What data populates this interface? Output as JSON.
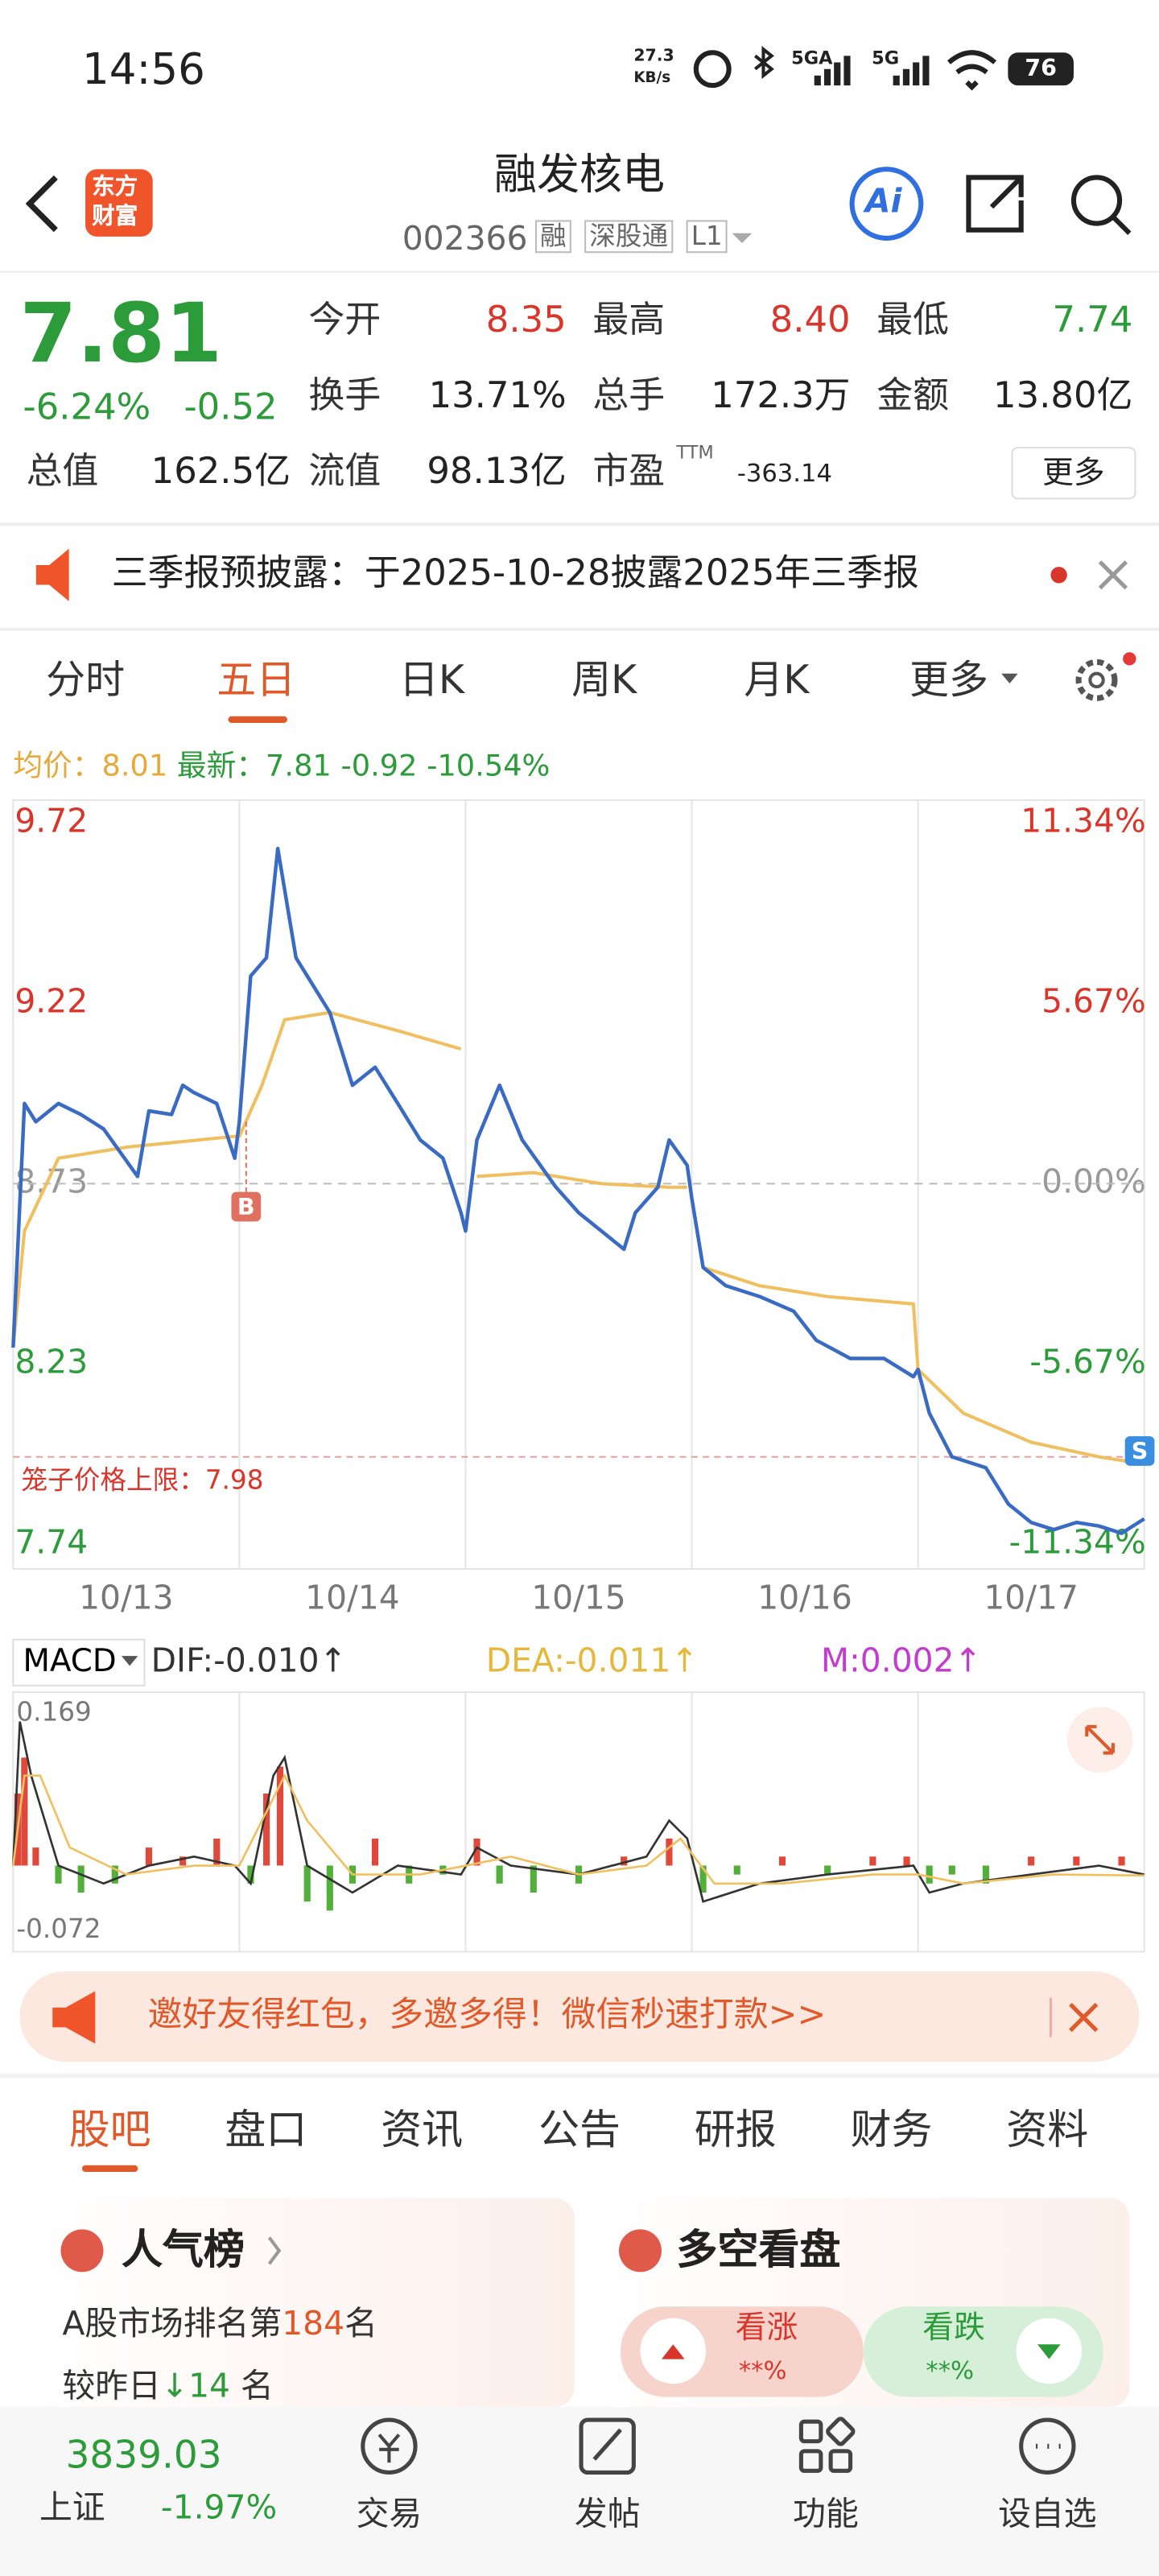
{
  "status_bar": {
    "time": "14:56",
    "net_speed": "27.3",
    "net_unit": "KB/s",
    "signal_1": "5GA",
    "signal_2": "5G",
    "battery": "76"
  },
  "header": {
    "title": "融发核电",
    "code": "002366",
    "tags": [
      "融",
      "深股通",
      "L1"
    ],
    "logo": [
      "东方",
      "财富"
    ],
    "ai": "Ai"
  },
  "quote": {
    "price": "7.81",
    "change_pct": "-6.24%",
    "change": "-0.52",
    "stats": [
      {
        "label": "今开",
        "value": "8.35"
      },
      {
        "label": "最高",
        "value": "8.40"
      },
      {
        "label": "最低",
        "value": "7.74"
      },
      {
        "label": "换手",
        "value": "13.71%"
      },
      {
        "label": "总手",
        "value": "172.3万"
      },
      {
        "label": "金额",
        "value": "13.80亿"
      },
      {
        "label": "总值",
        "value": "162.5亿"
      },
      {
        "label": "流值",
        "value": "98.13亿"
      },
      {
        "label": "市盈",
        "sup": "TTM",
        "value": "-363.14"
      }
    ],
    "more": "更多"
  },
  "notice": "三季报预披露：于2025-10-28披露2025年三季报",
  "tabs": [
    "分时",
    "五日",
    "日K",
    "周K",
    "月K",
    "更多"
  ],
  "info": {
    "avg_label": "均价：",
    "avg": "8.01",
    "last_label": "最新：",
    "last": "7.81",
    "change": "-0.92",
    "change_pct": "-10.54%"
  },
  "chart_data": [
    {
      "type": "line",
      "categories": [
        "10/13",
        "10/14",
        "10/15",
        "10/16",
        "10/17"
      ],
      "xlim": [
        0,
        5
      ],
      "ylim": [
        7.74,
        9.72
      ],
      "yticks": [
        9.72,
        {
          "value": 9.225,
          "label": "9.22"
        },
        8.73,
        {
          "value": 8.235,
          "label": "8.23"
        },
        7.74
      ],
      "y2lim": [
        -11.34,
        11.34
      ],
      "y2ticks": [
        {
          "value": 11.34,
          "label": "11.34%"
        },
        {
          "value": 5.67,
          "label": "5.67%"
        },
        {
          "value": 0,
          "label": "0.00%"
        },
        {
          "value": -5.67,
          "label": "-5.67%"
        },
        {
          "value": -11.34,
          "label": "-11.34%"
        }
      ],
      "series": [
        {
          "color": "#3a6bc4",
          "x": [
            0,
            0.05,
            0.1,
            0.2,
            0.3,
            0.4,
            0.55,
            0.6,
            0.7,
            0.75,
            0.8,
            0.9,
            0.98,
            1.0,
            1.05,
            1.12,
            1.17,
            1.25,
            1.4,
            1.5,
            1.6,
            1.7,
            1.8,
            1.9,
            1.98,
            2.0,
            2.05,
            2.15,
            2.25,
            2.4,
            2.5,
            2.6,
            2.7,
            2.75,
            2.85,
            2.9,
            2.98,
            3.0,
            3.05,
            3.15,
            3.3,
            3.45,
            3.55,
            3.7,
            3.85,
            3.98,
            4.0,
            4.05,
            4.15,
            4.3,
            4.4,
            4.5,
            4.6,
            4.7,
            4.8,
            4.9,
            5.0
          ],
          "values": [
            8.28,
            8.95,
            8.9,
            8.95,
            8.92,
            8.88,
            8.75,
            8.93,
            8.92,
            9.0,
            8.98,
            8.95,
            8.8,
            8.9,
            9.3,
            9.35,
            9.65,
            9.35,
            9.2,
            9.0,
            9.05,
            8.95,
            8.85,
            8.8,
            8.65,
            8.6,
            8.85,
            9.0,
            8.85,
            8.72,
            8.65,
            8.6,
            8.55,
            8.65,
            8.72,
            8.85,
            8.78,
            8.69,
            8.5,
            8.45,
            8.42,
            8.38,
            8.3,
            8.25,
            8.25,
            8.2,
            8.22,
            8.1,
            7.98,
            7.95,
            7.85,
            7.8,
            7.78,
            7.8,
            7.79,
            7.77,
            7.81
          ]
        },
        {
          "color": "#f0c060",
          "x": [
            0,
            0.05,
            0.2,
            0.5,
            0.98,
            1.0,
            1.1,
            1.2,
            1.4,
            1.7,
            1.98,
            2.0,
            2.05,
            2.3,
            2.6,
            2.9,
            2.98,
            3.0,
            3.05,
            3.3,
            3.6,
            3.98,
            4.0,
            4.2,
            4.5,
            4.8,
            5.0
          ],
          "values": [
            8.28,
            8.6,
            8.8,
            8.83,
            8.86,
            8.86,
            9.0,
            9.18,
            9.2,
            9.15,
            9.1,
            null,
            8.75,
            8.76,
            8.73,
            8.72,
            8.72,
            null,
            8.5,
            8.45,
            8.42,
            8.4,
            8.22,
            8.1,
            8.02,
            7.98,
            7.96
          ]
        }
      ],
      "cage_limit": {
        "label": "笼子价格上限：",
        "value": 7.98
      },
      "markers": [
        {
          "label": "B",
          "x": 1.03,
          "y": 8.9
        },
        {
          "label": "S",
          "x": 4.98,
          "y": 7.96
        }
      ]
    },
    {
      "type": "macd",
      "title": "MACD",
      "xlim": [
        0,
        5
      ],
      "ylim": [
        -0.072,
        0.169
      ],
      "yticks": [
        0.169,
        -0.072
      ],
      "series": [
        {
          "legend": "DIF:-0.010↑",
          "color": "#333333",
          "x": [
            0,
            0.03,
            0.08,
            0.2,
            0.4,
            0.6,
            0.8,
            0.98,
            1.05,
            1.15,
            1.2,
            1.3,
            1.5,
            1.7,
            1.98,
            2.05,
            2.2,
            2.5,
            2.8,
            2.9,
            2.98,
            3.05,
            3.3,
            3.6,
            3.98,
            4.05,
            4.2,
            4.5,
            4.8,
            5.0
          ],
          "values": [
            0,
            0.16,
            0.1,
            0,
            -0.02,
            0,
            0.01,
            0,
            -0.02,
            0.1,
            0.12,
            0,
            -0.03,
            0,
            -0.01,
            0.02,
            0,
            -0.01,
            0.01,
            0.05,
            0.03,
            -0.04,
            -0.02,
            -0.01,
            0,
            -0.03,
            -0.02,
            -0.01,
            0,
            -0.01
          ]
        },
        {
          "legend": "DEA:-0.011↑",
          "color": "#f0c060",
          "x": [
            0,
            0.05,
            0.12,
            0.25,
            0.5,
            0.8,
            1.0,
            1.1,
            1.2,
            1.3,
            1.5,
            1.8,
            2.0,
            2.2,
            2.5,
            2.8,
            2.95,
            3.1,
            3.4,
            3.8,
            4.0,
            4.2,
            4.6,
            5.0
          ],
          "values": [
            0,
            0.1,
            0.1,
            0.02,
            -0.01,
            0,
            0,
            0.05,
            0.1,
            0.05,
            -0.01,
            -0.01,
            0,
            0.01,
            -0.01,
            0,
            0.03,
            -0.02,
            -0.02,
            -0.01,
            -0.01,
            -0.02,
            -0.01,
            -0.011
          ]
        },
        {
          "legend": "M:0.002↑",
          "color": "#c23ccf",
          "bars": true,
          "x": [
            0.02,
            0.05,
            0.1,
            0.2,
            0.3,
            0.45,
            0.6,
            0.75,
            0.9,
            1.05,
            1.12,
            1.18,
            1.3,
            1.4,
            1.5,
            1.6,
            1.75,
            1.9,
            2.05,
            2.15,
            2.3,
            2.5,
            2.7,
            2.9,
            3.05,
            3.2,
            3.4,
            3.6,
            3.8,
            3.95,
            4.05,
            4.15,
            4.3,
            4.5,
            4.7,
            4.9
          ],
          "values": [
            0.08,
            0.12,
            0.02,
            -0.02,
            -0.03,
            -0.02,
            0.02,
            0.01,
            0.03,
            -0.02,
            0.08,
            0.11,
            -0.04,
            -0.05,
            -0.02,
            0.03,
            -0.02,
            -0.01,
            0.03,
            -0.02,
            -0.03,
            -0.02,
            0.01,
            0.03,
            -0.03,
            -0.01,
            0.01,
            -0.01,
            0.01,
            0.01,
            -0.02,
            -0.01,
            -0.02,
            0.01,
            0.01,
            0.01
          ]
        }
      ]
    }
  ],
  "banner": "邀好友得红包，多邀多得！微信秒速打款>>",
  "bottom_tabs": [
    "股吧",
    "盘口",
    "资讯",
    "公告",
    "研报",
    "财务",
    "资料"
  ],
  "cards": {
    "popularity": {
      "title": "人气榜",
      "rank_prefix": "A股市场排名第",
      "rank": "184",
      "rank_suffix": "名",
      "delta_prefix": "较昨日",
      "delta": "14",
      "delta_suffix": "名"
    },
    "sentiment": {
      "title": "多空看盘",
      "up": "看涨",
      "up_value": "**%",
      "down": "看跌",
      "down_value": "**%"
    }
  },
  "nav": {
    "index_value": "3839.03",
    "index_name": "上证",
    "index_change": "-1.97%",
    "items": [
      "交易",
      "发帖",
      "功能",
      "设自选"
    ]
  }
}
